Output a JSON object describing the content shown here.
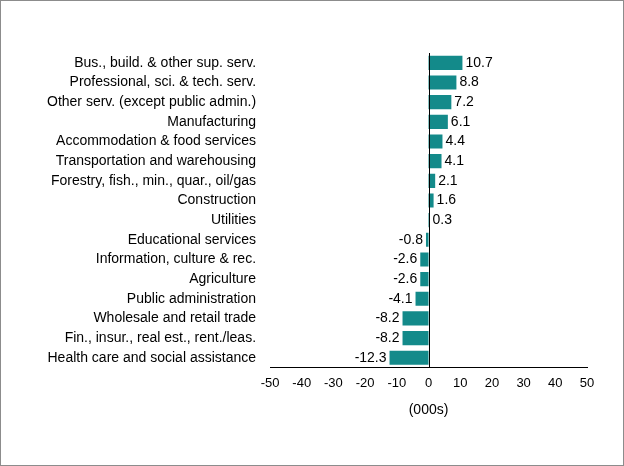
{
  "chart_data": {
    "type": "bar",
    "orientation": "horizontal",
    "x_label": "(000s)",
    "categories": [
      "Bus., build. & other sup. serv.",
      "Professional, sci. & tech. serv.",
      "Other serv. (except public admin.)",
      "Manufacturing",
      "Accommodation & food services",
      "Transportation and warehousing",
      "Forestry, fish., min., quar., oil/gas",
      "Construction",
      "Utilities",
      "Educational services",
      "Information, culture & rec.",
      "Agriculture",
      "Public administration",
      "Wholesale and retail trade",
      "Fin., insur., real est., rent./leas.",
      "Health care and social assistance"
    ],
    "values": [
      10.7,
      8.8,
      7.2,
      6.1,
      4.4,
      4.1,
      2.1,
      1.6,
      0.3,
      -0.8,
      -2.6,
      -2.6,
      -4.1,
      -8.2,
      -8.2,
      -12.3
    ],
    "color": "#138a8a",
    "xlim": [
      -50,
      50
    ],
    "xticks": [
      -50,
      -40,
      -30,
      -20,
      -10,
      0,
      10,
      20,
      30,
      40,
      50
    ],
    "grid": false,
    "data_labels": true
  }
}
